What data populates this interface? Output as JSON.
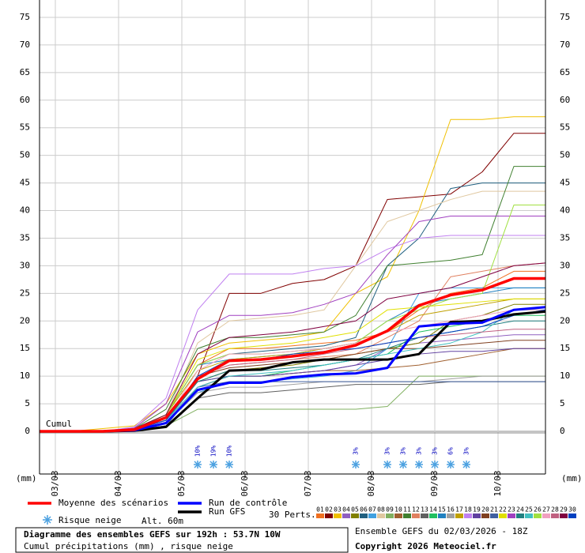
{
  "chart_data": {
    "type": "line",
    "x": [
      0,
      12,
      24,
      36,
      48,
      60,
      72,
      84,
      96,
      108,
      120,
      132,
      144,
      156,
      168,
      180,
      192
    ],
    "xlim": [
      0,
      192
    ],
    "xticks": [
      {
        "value": 6,
        "label": "03/03"
      },
      {
        "value": 30,
        "label": "04/03"
      },
      {
        "value": 54,
        "label": "05/03"
      },
      {
        "value": 78,
        "label": "06/03"
      },
      {
        "value": 102,
        "label": "07/03"
      },
      {
        "value": 126,
        "label": "08/03"
      },
      {
        "value": 150,
        "label": "09/03"
      },
      {
        "value": 174,
        "label": "10/03"
      }
    ],
    "ylim": [
      0,
      75
    ],
    "yticks": [
      0,
      5,
      10,
      15,
      20,
      25,
      30,
      35,
      40,
      45,
      50,
      55,
      60,
      65,
      70,
      75
    ],
    "y_unit": "(mm)",
    "y_note": "Cumul",
    "grid": true,
    "series": [
      {
        "name": "Moyenne des scénarios",
        "color": "#ff0000",
        "values": [
          0,
          0,
          0,
          0.3,
          2.5,
          9.5,
          12.8,
          13,
          13.6,
          14.3,
          15.6,
          18.2,
          22.8,
          24.7,
          25.6,
          27.7,
          27.7
        ]
      },
      {
        "name": "Run de contrôle",
        "color": "#0000ff",
        "values": [
          0,
          0,
          0,
          0.2,
          1.5,
          7.5,
          8.8,
          8.8,
          9.8,
          10.3,
          10.5,
          11.5,
          19,
          19.5,
          19.7,
          22,
          22.5
        ]
      },
      {
        "name": "Run GFS",
        "color": "#000000",
        "values": [
          0,
          0,
          0,
          0.1,
          0.8,
          6,
          11,
          11.2,
          12.5,
          13,
          13,
          13,
          14,
          19.8,
          20,
          21.2,
          21.7
        ]
      },
      {
        "name": "01",
        "color": "#f07020",
        "values": [
          0,
          0,
          0,
          0.5,
          3,
          12,
          15,
          15,
          15.5,
          16,
          16.5,
          18,
          22,
          25,
          26,
          29,
          29
        ]
      },
      {
        "name": "02",
        "color": "#800000",
        "values": [
          0,
          0,
          0,
          0.3,
          2,
          10,
          25,
          25,
          26.8,
          27.5,
          30,
          42,
          42.5,
          43,
          47,
          54,
          54
        ]
      },
      {
        "name": "03",
        "color": "#f0c000",
        "values": [
          0,
          0,
          0.5,
          1,
          5,
          14,
          16,
          16.5,
          17,
          18,
          25,
          28,
          40,
          56.5,
          56.5,
          57,
          57
        ]
      },
      {
        "name": "04",
        "color": "#9060c0",
        "values": [
          0,
          0,
          0,
          0.2,
          1,
          8,
          10,
          10,
          10.5,
          11,
          12,
          15,
          16,
          16.5,
          17,
          17.5,
          17.5
        ]
      },
      {
        "name": "05",
        "color": "#808000",
        "values": [
          0,
          0,
          0,
          0.3,
          2,
          9,
          11,
          11.5,
          12,
          13,
          14,
          15,
          16,
          20,
          21,
          23,
          23
        ]
      },
      {
        "name": "06",
        "color": "#206080",
        "values": [
          0,
          0,
          0,
          0.5,
          3,
          12,
          14,
          14.5,
          15,
          15.5,
          17,
          30,
          35,
          44,
          45,
          45,
          45
        ]
      },
      {
        "name": "07",
        "color": "#40a0e0",
        "values": [
          0,
          0,
          0,
          0.2,
          1.5,
          7,
          9,
          9,
          9.5,
          10,
          11,
          15,
          25,
          26,
          26,
          26,
          26
        ]
      },
      {
        "name": "08",
        "color": "#e0c8a0",
        "values": [
          0,
          0,
          0,
          0.4,
          3,
          16,
          20,
          20.5,
          21,
          22,
          30,
          38,
          40,
          42,
          43.5,
          43.5,
          43.5
        ]
      },
      {
        "name": "09",
        "color": "#80b060",
        "values": [
          0,
          0,
          0,
          0.2,
          1,
          4,
          4,
          4,
          4,
          4,
          4,
          4.5,
          10,
          10,
          10,
          10,
          10
        ]
      },
      {
        "name": "10",
        "color": "#a06030",
        "values": [
          0,
          0,
          0,
          0.3,
          2,
          8,
          10,
          10,
          10.5,
          11,
          11,
          11.5,
          12,
          13,
          14,
          15,
          15
        ]
      },
      {
        "name": "11",
        "color": "#408030",
        "values": [
          0,
          0,
          0,
          0.5,
          4,
          15,
          17,
          17,
          17.5,
          18,
          21,
          30,
          30.5,
          31,
          32,
          48,
          48
        ]
      },
      {
        "name": "12",
        "color": "#e08060",
        "values": [
          0,
          0,
          0,
          0.3,
          2,
          10,
          12,
          12.5,
          13,
          13.5,
          14,
          17,
          20,
          28,
          29,
          30,
          30.5
        ]
      },
      {
        "name": "13",
        "color": "#606060",
        "values": [
          0,
          0,
          0,
          0.2,
          1,
          6,
          7,
          7,
          7.5,
          8,
          8.5,
          8.5,
          8.5,
          9,
          9,
          9,
          9
        ]
      },
      {
        "name": "14",
        "color": "#20c060",
        "values": [
          0,
          0,
          0,
          0.3,
          2,
          9,
          10,
          10,
          11,
          12,
          13,
          14,
          18,
          19,
          20,
          21,
          21
        ]
      },
      {
        "name": "15",
        "color": "#2080c0",
        "values": [
          0,
          0,
          0,
          0.5,
          3,
          12,
          13,
          13.5,
          14,
          15,
          16,
          20,
          23,
          24,
          25,
          26,
          26
        ]
      },
      {
        "name": "16",
        "color": "#a0a0a0",
        "values": [
          0,
          0,
          0,
          0.2,
          1.5,
          7,
          8,
          8,
          8.5,
          9,
          9,
          9,
          9,
          9.5,
          10,
          10,
          10
        ]
      },
      {
        "name": "17",
        "color": "#c0a000",
        "values": [
          0,
          0,
          0,
          0.4,
          3,
          11,
          13,
          13.5,
          14,
          15,
          16,
          18,
          21,
          22,
          23,
          24,
          24
        ]
      },
      {
        "name": "18",
        "color": "#c080f0",
        "values": [
          0,
          0,
          0,
          0.8,
          6,
          22,
          28.5,
          28.5,
          28.5,
          29.5,
          30,
          33,
          35,
          35.5,
          35.5,
          35.5,
          35.5
        ]
      },
      {
        "name": "19",
        "color": "#6040a0",
        "values": [
          0,
          0,
          0,
          0.3,
          2,
          9,
          10,
          10,
          10.5,
          11,
          12,
          13,
          14,
          14.5,
          14.5,
          15,
          15
        ]
      },
      {
        "name": "20",
        "color": "#804020",
        "values": [
          0,
          0,
          0,
          0.3,
          2,
          10,
          11.5,
          12,
          12.5,
          13,
          14,
          15,
          15,
          15.5,
          16,
          16.5,
          16.5
        ]
      },
      {
        "name": "21",
        "color": "#4060a0",
        "values": [
          0,
          0,
          0,
          0.2,
          1,
          8,
          9,
          9,
          9,
          9,
          9,
          9,
          9,
          9,
          9,
          9,
          9
        ]
      },
      {
        "name": "22",
        "color": "#e0e000",
        "values": [
          0,
          0,
          0,
          0.5,
          3,
          13,
          15,
          15.5,
          16,
          17,
          18,
          22,
          22.5,
          23,
          23.5,
          24,
          24
        ]
      },
      {
        "name": "23",
        "color": "#a040c0",
        "values": [
          0,
          0,
          0,
          0.6,
          5,
          18,
          21,
          21,
          21.5,
          23,
          25,
          32,
          38,
          39,
          39,
          39,
          39
        ]
      },
      {
        "name": "24",
        "color": "#208080",
        "values": [
          0,
          0,
          0,
          0.3,
          2,
          9,
          11,
          11,
          11.5,
          12,
          13,
          15,
          17,
          18,
          19,
          20,
          20
        ]
      },
      {
        "name": "25",
        "color": "#40c0c0",
        "values": [
          0,
          0,
          0,
          0.3,
          2,
          8,
          10,
          10.5,
          11,
          12,
          13,
          14,
          15,
          16,
          18,
          22,
          22
        ]
      },
      {
        "name": "26",
        "color": "#a0e040",
        "values": [
          0,
          0,
          0,
          0.4,
          3,
          12,
          14,
          14,
          14.5,
          15,
          16,
          20,
          22,
          24,
          25,
          41,
          41
        ]
      },
      {
        "name": "27",
        "color": "#f0a0c0",
        "values": [
          0,
          0,
          0,
          0.3,
          2,
          11,
          14,
          14,
          14.5,
          15,
          16,
          18,
          19,
          20,
          21,
          22,
          22
        ]
      },
      {
        "name": "28",
        "color": "#c06080",
        "values": [
          0,
          0,
          0,
          0.3,
          2,
          10,
          12,
          12.5,
          13,
          14,
          15,
          16,
          17,
          17.5,
          18,
          18.5,
          18.5
        ]
      },
      {
        "name": "29",
        "color": "#800040",
        "values": [
          0,
          0,
          0,
          0.5,
          3,
          14,
          17,
          17.5,
          18,
          19,
          20,
          24,
          25,
          26,
          28,
          30,
          30.5
        ]
      },
      {
        "name": "30",
        "color": "#0040c0",
        "values": [
          0,
          0,
          0,
          0.3,
          2,
          10,
          13,
          13,
          14,
          14.5,
          15,
          16,
          17,
          18,
          19,
          21,
          22
        ]
      }
    ],
    "snow": {
      "name": "Risque neige",
      "x": [
        60,
        66,
        72,
        120,
        132,
        138,
        144,
        150,
        156,
        162
      ],
      "values": [
        10,
        19,
        10,
        3,
        3,
        3,
        3,
        3,
        6,
        3
      ],
      "value_labels": [
        "10%",
        "19%",
        "10%",
        "3%",
        "3%",
        "3%",
        "3%",
        "3%",
        "6%",
        "3%"
      ]
    },
    "altitude": "Alt. 60m",
    "perts_label": "30 Perts.",
    "title": "Diagramme des ensembles GEFS sur 192h : 53.7N 10W",
    "subtitle": "Cumul précipitations (mm) , risque neige",
    "run_info": "Ensemble GEFS du 02/03/2026 - 18Z",
    "copyright": "Copyright 2026 Meteociel.fr"
  }
}
